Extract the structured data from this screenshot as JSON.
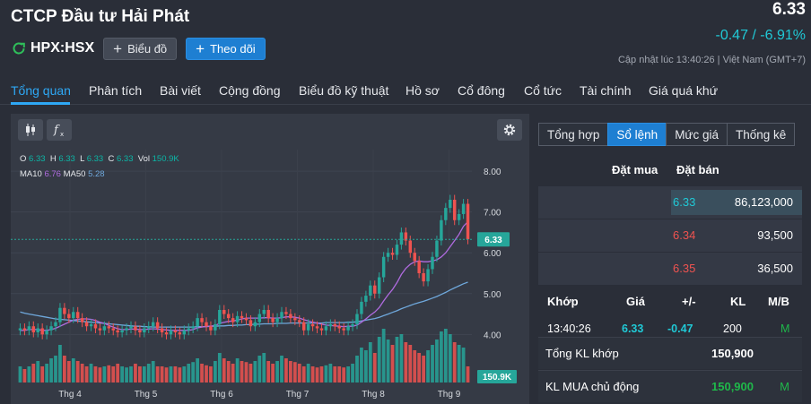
{
  "header": {
    "title": "CTCP Đầu tư Hải Phát",
    "ticker": "HPX:HSX",
    "chart_button": "Biểu đồ",
    "follow_button": "Theo dõi",
    "price": "6.33",
    "change": "-0.47 / -6.91%",
    "updated": "Cập nhật lúc  13:40:26 | Việt Nam (GMT+7)"
  },
  "tabs": [
    "Tổng quan",
    "Phân tích",
    "Bài viết",
    "Cộng đồng",
    "Biểu đồ kỹ thuật",
    "Hồ sơ",
    "Cổ đông",
    "Cổ tức",
    "Tài chính",
    "Giá quá khứ"
  ],
  "chart": {
    "ohlc": {
      "o_label": "O",
      "o": "6.33",
      "h_label": "H",
      "h": "6.33",
      "l_label": "L",
      "l": "6.33",
      "c_label": "C",
      "c": "6.33",
      "vol_label": "Vol",
      "vol": "150.9K"
    },
    "ma": {
      "ma10_label": "MA10",
      "ma10": "6.76",
      "ma50_label": "MA50",
      "ma50": "5.28"
    },
    "current_price_tag": "6.33",
    "volume_tag": "150.9K",
    "colors": {
      "up": "#26a69a",
      "down": "#ef5350",
      "ma10": "#b06be0",
      "ma50": "#6fa8dc",
      "price_line": "#26a69a"
    }
  },
  "chart_data": {
    "type": "candlestick",
    "y_ticks": [
      "8.00",
      "7.00",
      "6.00",
      "5.00",
      "4.00"
    ],
    "y_range": [
      3.7,
      8.2
    ],
    "x_ticks": [
      "Thg 4",
      "Thg 5",
      "Thg 6",
      "Thg 7",
      "Thg 8",
      "Thg 9"
    ],
    "last_price": 6.33,
    "closes": [
      4.15,
      4.1,
      4.2,
      4.05,
      4.15,
      4.0,
      4.1,
      4.2,
      4.3,
      4.65,
      4.5,
      4.4,
      4.55,
      4.4,
      4.3,
      4.2,
      4.25,
      4.15,
      4.1,
      4.2,
      4.15,
      4.1,
      4.05,
      4.1,
      4.15,
      4.2,
      4.1,
      4.05,
      4.15,
      4.2,
      4.3,
      4.15,
      4.05,
      4.0,
      4.1,
      4.05,
      4.0,
      4.1,
      4.15,
      4.2,
      4.4,
      4.3,
      4.2,
      4.1,
      4.25,
      4.6,
      4.5,
      4.4,
      4.3,
      4.45,
      4.4,
      4.35,
      4.2,
      4.3,
      4.5,
      4.6,
      4.4,
      4.3,
      4.4,
      4.55,
      4.5,
      4.4,
      4.35,
      4.3,
      4.1,
      4.25,
      4.2,
      4.15,
      4.1,
      4.2,
      4.25,
      4.2,
      4.15,
      4.1,
      4.2,
      4.25,
      4.5,
      4.8,
      4.95,
      5.2,
      5.0,
      5.4,
      5.9,
      6.0,
      5.95,
      6.2,
      6.5,
      6.3,
      6.0,
      5.8,
      5.5,
      5.3,
      5.6,
      5.9,
      6.3,
      6.8,
      7.1,
      7.3,
      6.8,
      6.95,
      7.2,
      6.33
    ],
    "ma10": [
      4.1,
      4.1,
      4.12,
      4.12,
      4.12,
      4.1,
      4.1,
      4.12,
      4.15,
      4.2,
      4.25,
      4.3,
      4.35,
      4.37,
      4.38,
      4.38,
      4.37,
      4.34,
      4.3,
      4.27,
      4.22,
      4.18,
      4.14,
      4.12,
      4.12,
      4.13,
      4.13,
      4.12,
      4.12,
      4.13,
      4.14,
      4.13,
      4.12,
      4.11,
      4.1,
      4.1,
      4.1,
      4.1,
      4.1,
      4.12,
      4.16,
      4.18,
      4.2,
      4.2,
      4.22,
      4.27,
      4.3,
      4.32,
      4.33,
      4.35,
      4.38,
      4.4,
      4.4,
      4.4,
      4.4,
      4.41,
      4.41,
      4.4,
      4.4,
      4.41,
      4.43,
      4.43,
      4.42,
      4.4,
      4.36,
      4.33,
      4.3,
      4.28,
      4.25,
      4.23,
      4.22,
      4.21,
      4.2,
      4.19,
      4.2,
      4.2,
      4.23,
      4.3,
      4.38,
      4.47,
      4.55,
      4.66,
      4.82,
      4.97,
      5.1,
      5.27,
      5.47,
      5.62,
      5.72,
      5.78,
      5.8,
      5.78,
      5.78,
      5.8,
      5.83,
      5.9,
      6.0,
      6.15,
      6.3,
      6.45,
      6.65,
      6.76
    ],
    "ma50": [
      4.55,
      4.52,
      4.5,
      4.48,
      4.46,
      4.44,
      4.42,
      4.4,
      4.38,
      4.37,
      4.36,
      4.35,
      4.34,
      4.33,
      4.32,
      4.31,
      4.3,
      4.29,
      4.28,
      4.27,
      4.26,
      4.25,
      4.24,
      4.23,
      4.22,
      4.21,
      4.2,
      4.2,
      4.19,
      4.19,
      4.18,
      4.18,
      4.18,
      4.18,
      4.18,
      4.18,
      4.18,
      4.18,
      4.18,
      4.18,
      4.19,
      4.19,
      4.19,
      4.2,
      4.2,
      4.21,
      4.21,
      4.22,
      4.22,
      4.23,
      4.23,
      4.24,
      4.24,
      4.25,
      4.25,
      4.26,
      4.26,
      4.26,
      4.27,
      4.27,
      4.27,
      4.28,
      4.28,
      4.28,
      4.28,
      4.28,
      4.28,
      4.28,
      4.28,
      4.29,
      4.29,
      4.29,
      4.29,
      4.29,
      4.3,
      4.3,
      4.31,
      4.33,
      4.35,
      4.37,
      4.39,
      4.42,
      4.46,
      4.5,
      4.54,
      4.58,
      4.63,
      4.67,
      4.71,
      4.75,
      4.78,
      4.81,
      4.85,
      4.89,
      4.93,
      4.98,
      5.03,
      5.09,
      5.14,
      5.19,
      5.24,
      5.28
    ],
    "volumes": [
      0.3,
      0.25,
      0.3,
      0.35,
      0.4,
      0.3,
      0.35,
      0.45,
      0.5,
      0.7,
      0.5,
      0.4,
      0.45,
      0.4,
      0.35,
      0.3,
      0.35,
      0.3,
      0.28,
      0.3,
      0.32,
      0.3,
      0.35,
      0.3,
      0.28,
      0.3,
      0.35,
      0.3,
      0.3,
      0.35,
      0.4,
      0.3,
      0.3,
      0.28,
      0.3,
      0.3,
      0.28,
      0.3,
      0.35,
      0.38,
      0.45,
      0.35,
      0.32,
      0.3,
      0.4,
      0.55,
      0.45,
      0.4,
      0.35,
      0.45,
      0.4,
      0.38,
      0.35,
      0.4,
      0.5,
      0.55,
      0.4,
      0.35,
      0.4,
      0.5,
      0.45,
      0.4,
      0.38,
      0.35,
      0.3,
      0.35,
      0.3,
      0.28,
      0.3,
      0.32,
      0.35,
      0.3,
      0.3,
      0.28,
      0.3,
      0.35,
      0.5,
      0.65,
      0.6,
      0.75,
      0.55,
      0.85,
      1.0,
      0.8,
      0.7,
      0.85,
      0.9,
      0.75,
      0.7,
      0.6,
      0.55,
      0.5,
      0.6,
      0.7,
      0.8,
      0.95,
      1.0,
      0.9,
      0.75,
      0.7,
      0.65,
      0.3
    ]
  },
  "side": {
    "tabs": [
      "Tổng hợp",
      "Sổ lệnh",
      "Mức giá",
      "Thống kê"
    ],
    "orderbook_headers": {
      "buy": "Đặt mua",
      "sell": "Đặt bán"
    },
    "orderbook": [
      {
        "price": "6.33",
        "volume": "86,123,000",
        "color": "#20c9d6"
      },
      {
        "price": "6.34",
        "volume": "93,500",
        "color": "#ef5350"
      },
      {
        "price": "6.35",
        "volume": "36,500",
        "color": "#ef5350"
      }
    ],
    "matched_headers": {
      "time": "Khớp",
      "price": "Giá",
      "change": "+/-",
      "vol": "KL",
      "side": "M/B"
    },
    "matched_row": {
      "time": "13:40:26",
      "price": "6.33",
      "change": "-0.47",
      "vol": "200",
      "side": "M"
    },
    "summary": [
      {
        "label": "Tổng KL khớp",
        "value": "150,900",
        "m": ""
      },
      {
        "label": "KL MUA chủ động",
        "value": "150,900",
        "m": "M"
      }
    ]
  }
}
